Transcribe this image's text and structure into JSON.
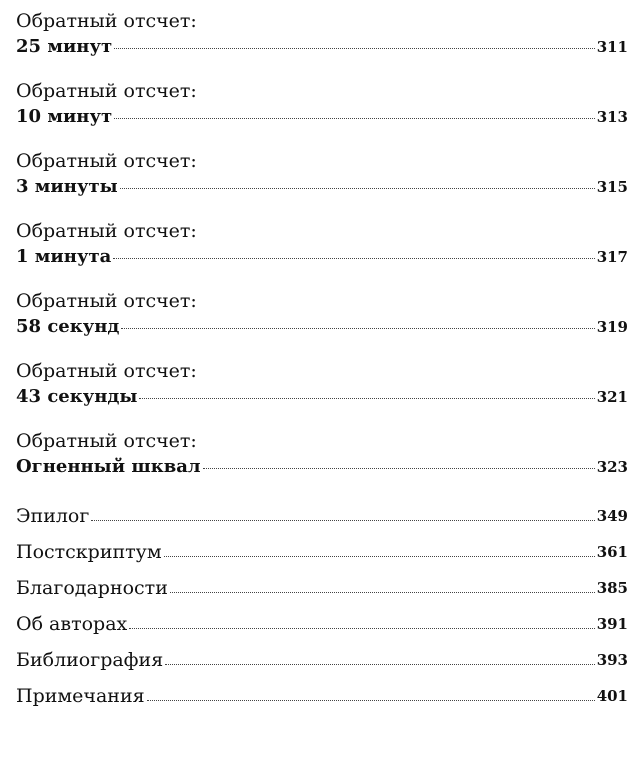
{
  "chapters": [
    {
      "prefix": "Обратный отсчет:",
      "title": "25 минут",
      "page": "311"
    },
    {
      "prefix": "Обратный отсчет:",
      "title": "10 минут",
      "page": "313"
    },
    {
      "prefix": "Обратный отсчет:",
      "title": "3 минуты",
      "page": "315"
    },
    {
      "prefix": "Обратный отсчет:",
      "title": "1 минута",
      "page": "317"
    },
    {
      "prefix": "Обратный отсчет:",
      "title": "58 секунд",
      "page": "319"
    },
    {
      "prefix": "Обратный отсчет:",
      "title": "43 секунды",
      "page": "321"
    },
    {
      "prefix": "Обратный отсчет:",
      "title": "Огненный шквал",
      "page": "323"
    }
  ],
  "back_matter": [
    {
      "title": "Эпилог",
      "page": "349"
    },
    {
      "title": "Постскриптум",
      "page": "361"
    },
    {
      "title": "Благодарности",
      "page": "385"
    },
    {
      "title": "Об авторах",
      "page": "391"
    },
    {
      "title": "Библиография",
      "page": "393"
    },
    {
      "title": "Примечания",
      "page": "401"
    }
  ]
}
